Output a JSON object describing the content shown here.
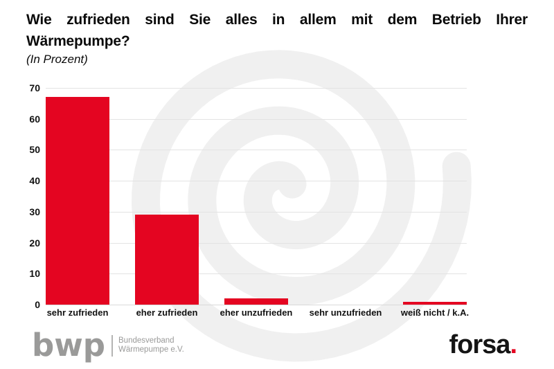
{
  "title": {
    "line1": "Wie zufrieden sind Sie alles in allem mit dem Betrieb Ihrer",
    "line2": "Wärmepumpe?",
    "subtitle": "(In Prozent)"
  },
  "chart_data": {
    "type": "bar",
    "title": "Wie zufrieden sind Sie alles in allem mit dem Betrieb Ihrer Wärmepumpe?",
    "subtitle": "(In Prozent)",
    "categories": [
      "sehr zufrieden",
      "eher zufrieden",
      "eher unzufrieden",
      "sehr unzufrieden",
      "weiß nicht / k.A."
    ],
    "values": [
      67,
      29,
      2,
      0,
      1
    ],
    "xlabel": "",
    "ylabel": "",
    "unit": "Prozent",
    "ylim": [
      0,
      70
    ],
    "yticks": [
      0,
      10,
      20,
      30,
      40,
      50,
      60,
      70
    ],
    "grid": true,
    "legend": false,
    "bar_color": "#e40521"
  },
  "colors": {
    "bar_red": "#e40521",
    "forsa_dot_red": "#e40521",
    "gridline": "#e3e3e3",
    "watermark_gray": "#f0f0f0",
    "logo_gray": "#9a9a99",
    "text_black": "#0a0a0a"
  },
  "footer": {
    "bwp": {
      "logo_text": "bwp",
      "org_line1": "Bundesverband",
      "org_line2": "Wärmepumpe e.V."
    },
    "forsa": {
      "logo_text": "forsa",
      "dot": "."
    }
  }
}
